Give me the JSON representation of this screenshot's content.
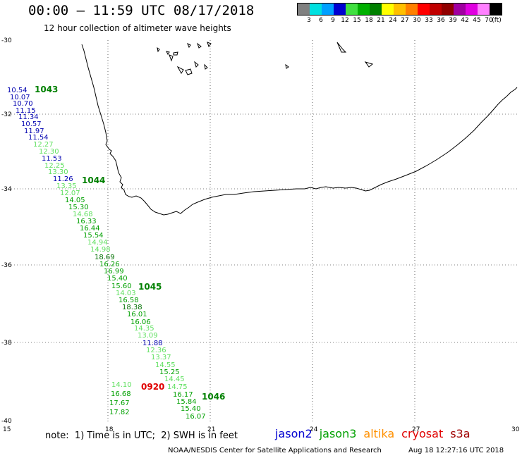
{
  "header": {
    "title": "00:00 – 11:59 UTC 08/17/2018",
    "subtitle": "12 hour collection of altimeter wave heights"
  },
  "legend": {
    "colors": [
      "#808080",
      "#00e0e0",
      "#00a0ff",
      "#0000d0",
      "#40e040",
      "#00b000",
      "#008000",
      "#ffff00",
      "#ffc000",
      "#ff8000",
      "#ff0000",
      "#c00000",
      "#900000",
      "#a000a0",
      "#e000e0",
      "#ff80ff",
      "#000000"
    ],
    "labels": [
      "3",
      "6",
      "9",
      "12",
      "15",
      "18",
      "21",
      "24",
      "27",
      "30",
      "33",
      "36",
      "39",
      "42",
      "45",
      "70",
      "(ft)"
    ]
  },
  "axes": {
    "lon_ticks": [
      "15",
      "18",
      "21",
      "24",
      "27",
      "30"
    ],
    "lat_ticks": [
      "-30",
      "-32",
      "-34",
      "-36",
      "-38",
      "-40"
    ]
  },
  "track_times": [
    {
      "label": "1043",
      "color": "#008000"
    },
    {
      "label": "1044",
      "color": "#008000"
    },
    {
      "label": "1045",
      "color": "#008000"
    },
    {
      "label": "1046",
      "color": "#008000"
    },
    {
      "label": "0920",
      "color": "#e00000"
    }
  ],
  "readings": [
    {
      "v": "10.54",
      "c": "#0000b0"
    },
    {
      "v": "10.07",
      "c": "#0000b0"
    },
    {
      "v": "10.70",
      "c": "#0000b0"
    },
    {
      "v": "11.15",
      "c": "#0000b0"
    },
    {
      "v": "11.34",
      "c": "#0000b0"
    },
    {
      "v": "10.57",
      "c": "#0000b0"
    },
    {
      "v": "11.97",
      "c": "#0000b0"
    },
    {
      "v": "11.54",
      "c": "#0000b0"
    },
    {
      "v": "12.27",
      "c": "#60e060"
    },
    {
      "v": "12.30",
      "c": "#60e060"
    },
    {
      "v": "11.53",
      "c": "#0000b0"
    },
    {
      "v": "12.25",
      "c": "#60e060"
    },
    {
      "v": "13.30",
      "c": "#60e060"
    },
    {
      "v": "11.26",
      "c": "#0000b0"
    },
    {
      "v": "13.35",
      "c": "#60e060"
    },
    {
      "v": "12.07",
      "c": "#60e060"
    },
    {
      "v": "14.05",
      "c": "#00a000"
    },
    {
      "v": "15.30",
      "c": "#00a000"
    },
    {
      "v": "14.68",
      "c": "#60e060"
    },
    {
      "v": "16.33",
      "c": "#00a000"
    },
    {
      "v": "16.44",
      "c": "#00a000"
    },
    {
      "v": "15.54",
      "c": "#00a000"
    },
    {
      "v": "14.94",
      "c": "#60e060"
    },
    {
      "v": "14.98",
      "c": "#60e060"
    },
    {
      "v": "18.69",
      "c": "#007000"
    },
    {
      "v": "16.26",
      "c": "#00a000"
    },
    {
      "v": "16.99",
      "c": "#00a000"
    },
    {
      "v": "15.40",
      "c": "#00a000"
    },
    {
      "v": "15.60",
      "c": "#00a000"
    },
    {
      "v": "14.03",
      "c": "#60e060"
    },
    {
      "v": "16.58",
      "c": "#00a000"
    },
    {
      "v": "18.38",
      "c": "#007000"
    },
    {
      "v": "16.01",
      "c": "#00a000"
    },
    {
      "v": "16.06",
      "c": "#00a000"
    },
    {
      "v": "14.35",
      "c": "#60e060"
    },
    {
      "v": "13.09",
      "c": "#60e060"
    },
    {
      "v": "11.88",
      "c": "#0000b0"
    },
    {
      "v": "12.36",
      "c": "#60e060"
    },
    {
      "v": "13.37",
      "c": "#60e060"
    },
    {
      "v": "14.55",
      "c": "#60e060"
    },
    {
      "v": "15.25",
      "c": "#00a000"
    },
    {
      "v": "14.45",
      "c": "#60e060"
    },
    {
      "v": "14.75",
      "c": "#60e060"
    },
    {
      "v": "16.17",
      "c": "#00a000"
    },
    {
      "v": "15.84",
      "c": "#00a000"
    },
    {
      "v": "15.40",
      "c": "#00a000"
    },
    {
      "v": "16.07",
      "c": "#00a000"
    },
    {
      "v": "14.10",
      "c": "#60e060"
    },
    {
      "v": "16.68",
      "c": "#00a000"
    },
    {
      "v": "17.67",
      "c": "#00a000"
    },
    {
      "v": "17.82",
      "c": "#00a000"
    }
  ],
  "footer": {
    "note": "note:  1) Time is in UTC;  2) SWH is in feet",
    "satellites": [
      {
        "name": "jason2",
        "color": "#0000d0"
      },
      {
        "name": "jason3",
        "color": "#00a000"
      },
      {
        "name": "altika",
        "color": "#ff9000"
      },
      {
        "name": "cryosat",
        "color": "#e00000"
      },
      {
        "name": "s3a",
        "color": "#a00000"
      }
    ],
    "credit": "NOAA/NESDIS Center for Satellite Applications and Research",
    "timestamp": "Aug 18 12:27:16 UTC 2018"
  }
}
